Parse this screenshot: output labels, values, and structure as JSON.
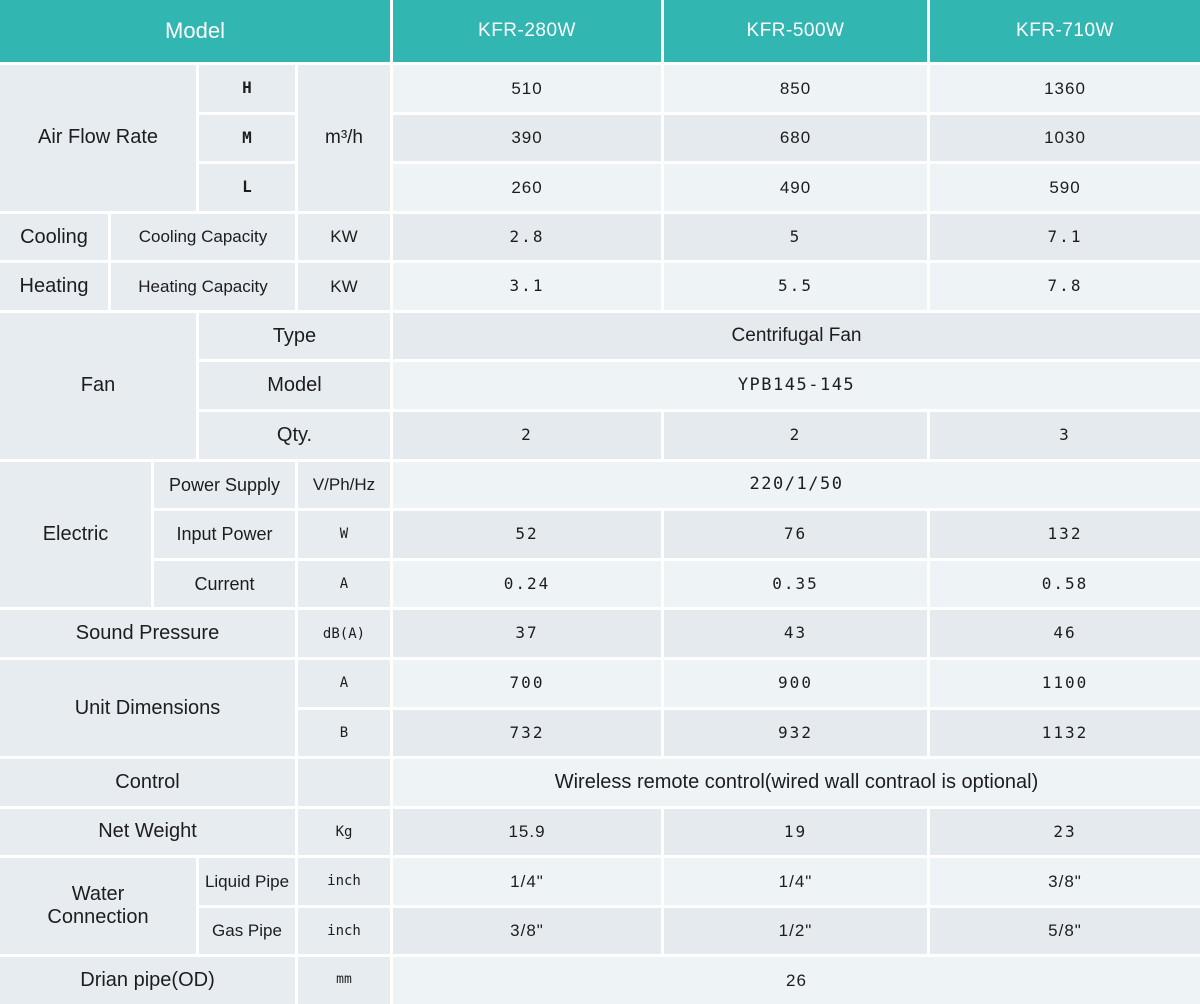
{
  "header": {
    "model_label": "Model",
    "models": [
      "KFR-280W",
      "KFR-500W",
      "KFR-710W"
    ]
  },
  "table": {
    "air_flow_rate": {
      "label": "Air Flow Rate",
      "unit": "m³/h",
      "speeds": [
        "H",
        "M",
        "L"
      ],
      "values": [
        [
          "510",
          "850",
          "1360"
        ],
        [
          "390",
          "680",
          "1030"
        ],
        [
          "260",
          "490",
          "590"
        ]
      ]
    },
    "cooling": {
      "label": "Cooling",
      "sub_label": "Cooling Capacity",
      "unit": "KW",
      "values": [
        "2.8",
        "5",
        "7.1"
      ]
    },
    "heating": {
      "label": "Heating",
      "sub_label": "Heating Capacity",
      "unit": "KW",
      "values": [
        "3.1",
        "5.5",
        "7.8"
      ]
    },
    "fan": {
      "label": "Fan",
      "type_label": "Type",
      "type_value": "Centrifugal Fan",
      "model_label": "Model",
      "model_value": "YPB145-145",
      "qty_label": "Qty.",
      "qty_values": [
        "2",
        "2",
        "3"
      ]
    },
    "electric": {
      "label": "Electric",
      "power_supply": {
        "label": "Power Supply",
        "unit": "V/Ph/Hz",
        "value": "220/1/50"
      },
      "input_power": {
        "label": "Input Power",
        "unit": "W",
        "values": [
          "52",
          "76",
          "132"
        ]
      },
      "current": {
        "label": "Current",
        "unit": "A",
        "values": [
          "0.24",
          "0.35",
          "0.58"
        ]
      }
    },
    "sound_pressure": {
      "label": "Sound Pressure",
      "unit": "dB(A)",
      "values": [
        "37",
        "43",
        "46"
      ]
    },
    "unit_dimensions": {
      "label": "Unit Dimensions",
      "rows": [
        {
          "dim": "A",
          "values": [
            "700",
            "900",
            "1100"
          ]
        },
        {
          "dim": "B",
          "values": [
            "732",
            "932",
            "1132"
          ]
        }
      ]
    },
    "control": {
      "label": "Control",
      "value": "Wireless remote control(wired wall contraol is optional)"
    },
    "net_weight": {
      "label": "Net Weight",
      "unit": "Kg",
      "values": [
        "15.9",
        "19",
        "23"
      ]
    },
    "water_connection": {
      "label": "Water Connection",
      "rows": [
        {
          "pipe": "Liquid Pipe",
          "unit": "inch",
          "values": [
            "1/4\"",
            "1/4\"",
            "3/8\""
          ]
        },
        {
          "pipe": "Gas Pipe",
          "unit": "inch",
          "values": [
            "3/8\"",
            "1/2\"",
            "5/8\""
          ]
        }
      ]
    },
    "drain_pipe": {
      "label": "Drian pipe(OD)",
      "unit": "mm",
      "value": "26"
    }
  },
  "colors": {
    "header_teal": "#32b6b2",
    "label_cell_bg": "#e6ecef",
    "row_light": "#eef3f6",
    "row_dark": "#e4eaed",
    "text": "#1d1d1f",
    "header_text": "#ffffff"
  }
}
